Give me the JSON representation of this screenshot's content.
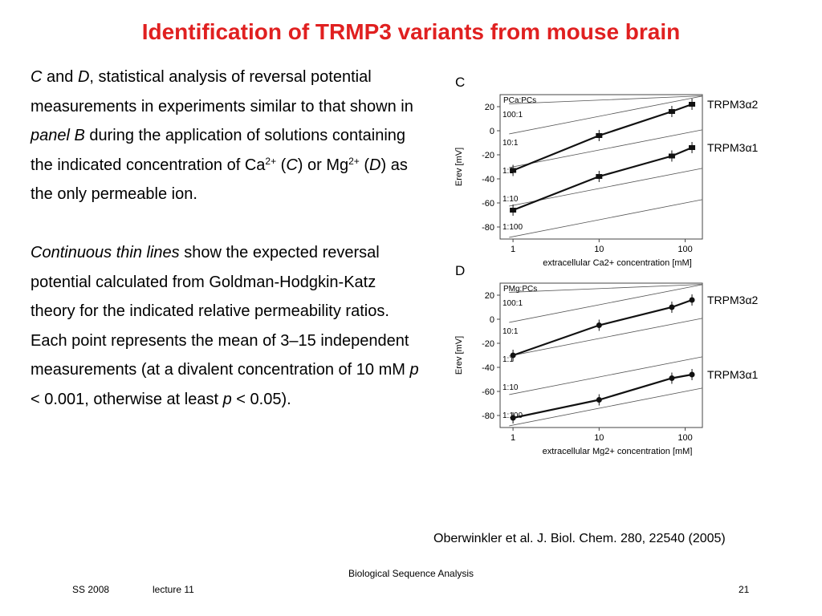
{
  "slide": {
    "title": "Identification of TRMP3 variants from mouse brain",
    "paragraph1": {
      "c": "C",
      "and": " and ",
      "d": "D",
      "text": ", statistical analysis of reversal potential measurements in experiments similar to that shown in ",
      "panel": "panel B",
      "text2": " during the application of solutions containing the indicated concentration of Ca",
      "ca_sup": "2+",
      "open1": " (",
      "c2": "C",
      "text3": ") or Mg",
      "mg_sup": "2+",
      "open2": " (",
      "d2": "D",
      "text4": ") as the only permeable ion."
    },
    "paragraph2": {
      "italic": "Continuous thin lines",
      "text": " show the expected reversal potential calculated from Goldman-Hodgkin-Katz theory for the indicated relative permeability ratios.",
      "text2": "Each point represents the mean of 3–15 independent measurements (at a divalent concentration of 10 mM ",
      "p1": "p",
      "lt1": " < 0.001, otherwise at least ",
      "p2": "p",
      "lt2": " < 0.05)."
    },
    "citation": "Oberwinkler et al. J. Biol. Chem. 280, 22540 (2005)",
    "footer": {
      "course": "Biological Sequence Analysis",
      "term": "SS 2008",
      "lecture": "lecture 11",
      "page": "21"
    }
  },
  "chart_data": [
    {
      "type": "line",
      "panel_label": "C",
      "xscale": "log",
      "x": [
        1,
        10,
        70,
        120
      ],
      "xticks": [
        "1",
        "10",
        "100"
      ],
      "xlabel": "extracellular Ca2+ concentration [mM]",
      "ylabel": "Erev [mV]",
      "yticks": [
        20,
        0,
        -20,
        -40,
        -60,
        -80
      ],
      "ylim": [
        -90,
        30
      ],
      "ratio_header": "PCa:PCs",
      "ratio_lines": [
        "100:1",
        "10:1",
        "1:1",
        "1:10",
        "1:100"
      ],
      "series": [
        {
          "name": "TRPM3α2",
          "values": [
            -33,
            -4,
            16,
            22
          ]
        },
        {
          "name": "TRPM3α1",
          "values": [
            -66,
            -38,
            -21,
            -14
          ]
        }
      ]
    },
    {
      "type": "line",
      "panel_label": "D",
      "xscale": "log",
      "x": [
        1,
        10,
        70,
        120
      ],
      "xticks": [
        "1",
        "10",
        "100"
      ],
      "xlabel": "extracellular Mg2+ concentration [mM]",
      "ylabel": "Erev [mV]",
      "yticks": [
        20,
        0,
        -20,
        -40,
        -60,
        -80
      ],
      "ylim": [
        -90,
        30
      ],
      "ratio_header": "PMg:PCs",
      "ratio_lines": [
        "100:1",
        "10:1",
        "1:1",
        "1:10",
        "1:100"
      ],
      "series": [
        {
          "name": "TRPM3α2",
          "values": [
            -30,
            -5,
            10,
            16
          ]
        },
        {
          "name": "TRPM3α1",
          "values": [
            -82,
            -67,
            -49,
            -46
          ]
        }
      ]
    }
  ]
}
